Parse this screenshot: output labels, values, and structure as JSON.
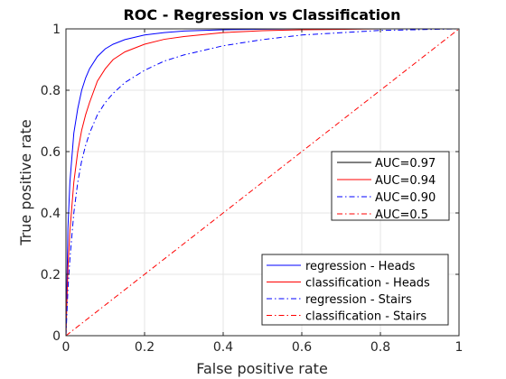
{
  "chart_data": {
    "type": "line",
    "title": "ROC - Regression vs Classification",
    "xlabel": "False positive rate",
    "ylabel": "True positive rate",
    "xlim": [
      0,
      1
    ],
    "ylim": [
      0,
      1
    ],
    "xticks": [
      "0",
      "0.2",
      "0.4",
      "0.6",
      "0.8",
      "1"
    ],
    "yticks": [
      "0",
      "0.2",
      "0.4",
      "0.6",
      "0.8",
      "1"
    ],
    "grid": true,
    "series": [
      {
        "name": "regression - Heads",
        "auc_label": "AUC=0.97",
        "color": "#0000ff",
        "style": "solid",
        "x": [
          0,
          0.005,
          0.01,
          0.02,
          0.03,
          0.04,
          0.05,
          0.06,
          0.08,
          0.1,
          0.12,
          0.15,
          0.2,
          0.25,
          0.3,
          0.4,
          0.5,
          0.6,
          0.8,
          1.0
        ],
        "y": [
          0,
          0.35,
          0.5,
          0.66,
          0.74,
          0.8,
          0.84,
          0.87,
          0.91,
          0.935,
          0.95,
          0.965,
          0.98,
          0.988,
          0.993,
          0.997,
          0.999,
          1.0,
          1.0,
          1.0
        ]
      },
      {
        "name": "classification - Heads",
        "auc_label": "AUC=0.94",
        "color": "#ff0000",
        "style": "solid",
        "x": [
          0,
          0.005,
          0.01,
          0.02,
          0.03,
          0.04,
          0.05,
          0.06,
          0.08,
          0.1,
          0.12,
          0.15,
          0.2,
          0.25,
          0.3,
          0.4,
          0.5,
          0.6,
          0.8,
          1.0
        ],
        "y": [
          0,
          0.22,
          0.34,
          0.5,
          0.6,
          0.67,
          0.72,
          0.76,
          0.83,
          0.87,
          0.9,
          0.925,
          0.95,
          0.966,
          0.975,
          0.988,
          0.994,
          0.997,
          1.0,
          1.0
        ]
      },
      {
        "name": "regression - Stairs",
        "auc_label": "AUC=0.90",
        "color": "#0000ff",
        "style": "dashdot",
        "x": [
          0,
          0.005,
          0.01,
          0.02,
          0.03,
          0.04,
          0.05,
          0.06,
          0.08,
          0.1,
          0.12,
          0.15,
          0.2,
          0.25,
          0.3,
          0.4,
          0.5,
          0.6,
          0.8,
          1.0
        ],
        "y": [
          0,
          0.15,
          0.25,
          0.4,
          0.5,
          0.57,
          0.62,
          0.66,
          0.72,
          0.76,
          0.79,
          0.825,
          0.865,
          0.895,
          0.915,
          0.945,
          0.965,
          0.98,
          0.995,
          1.0
        ]
      },
      {
        "name": "classification - Stairs",
        "auc_label": "AUC=0.5",
        "color": "#ff0000",
        "style": "dashdot",
        "x": [
          0,
          1
        ],
        "y": [
          0,
          1
        ]
      }
    ],
    "legend_auc_placement": "center-right",
    "legend_names_placement": "bottom-right"
  }
}
